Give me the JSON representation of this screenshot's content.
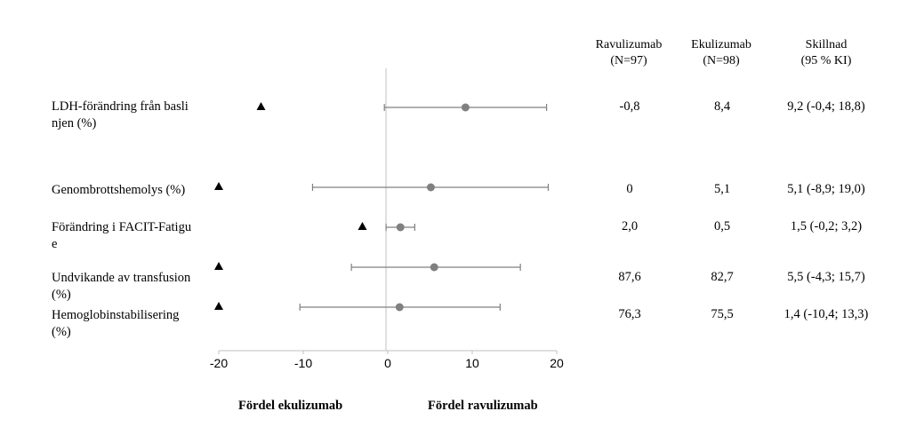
{
  "columns": {
    "ravulizumab": [
      "Ravulizumab",
      "(N=97)"
    ],
    "ekulizumab": [
      "Ekulizumab",
      "(N=98)"
    ],
    "skillnad": [
      "Skillnad",
      "(95 % KI)"
    ]
  },
  "rows": [
    {
      "label": "LDH-förändring från baslinjen (%)",
      "ravulizumab": "-0,8",
      "ekulizumab": "8,4",
      "skillnad": "9,2 (-0,4; 18,8)"
    },
    {
      "label": "Genombrottshemolys (%)",
      "ravulizumab": "0",
      "ekulizumab": "5,1",
      "skillnad": "5,1 (-8,9; 19,0)"
    },
    {
      "label": "Förändring i FACIT-Fatigue",
      "ravulizumab": "2,0",
      "ekulizumab": "0,5",
      "skillnad": "1,5 (-0,2; 3,2)"
    },
    {
      "label": "Undvikande av transfusion (%)",
      "ravulizumab": "87,6",
      "ekulizumab": "82,7",
      "skillnad": "5,5 (-4,3; 15,7)"
    },
    {
      "label": "Hemoglobinstabilisering (%)",
      "ravulizumab": "76,3",
      "ekulizumab": "75,5",
      "skillnad": "1,4 (-10,4; 13,3)"
    }
  ],
  "footer": {
    "left": "Fördel ekulizumab",
    "right": "Fördel ravulizumab"
  },
  "chart_data": {
    "type": "scatter",
    "xlim": [
      -20,
      20
    ],
    "xticks": [
      "-20",
      "-10",
      "0",
      "10",
      "20"
    ],
    "colors": {
      "point": "#808080",
      "whisker": "#808080",
      "triangle": "#000000",
      "axis": "#bfbfbf"
    },
    "series": [
      {
        "values": [
          {
            "category": "LDH-förändring från baslinjen (%)",
            "estimate": 9.2,
            "low": -0.4,
            "high": 18.8,
            "triangle": -15
          },
          {
            "category": "Genombrottshemolys (%)",
            "estimate": 5.1,
            "low": -8.9,
            "high": 19.0,
            "triangle": -20
          },
          {
            "category": "Förändring i FACIT-Fatigue",
            "estimate": 1.5,
            "low": -0.2,
            "high": 3.2,
            "triangle": -3
          },
          {
            "category": "Undvikande av transfusion (%)",
            "estimate": 5.5,
            "low": -4.3,
            "high": 15.7,
            "triangle": -20
          },
          {
            "category": "Hemoglobinstabilisering (%)",
            "estimate": 1.4,
            "low": -10.4,
            "high": 13.3,
            "triangle": -20
          }
        ]
      }
    ]
  }
}
